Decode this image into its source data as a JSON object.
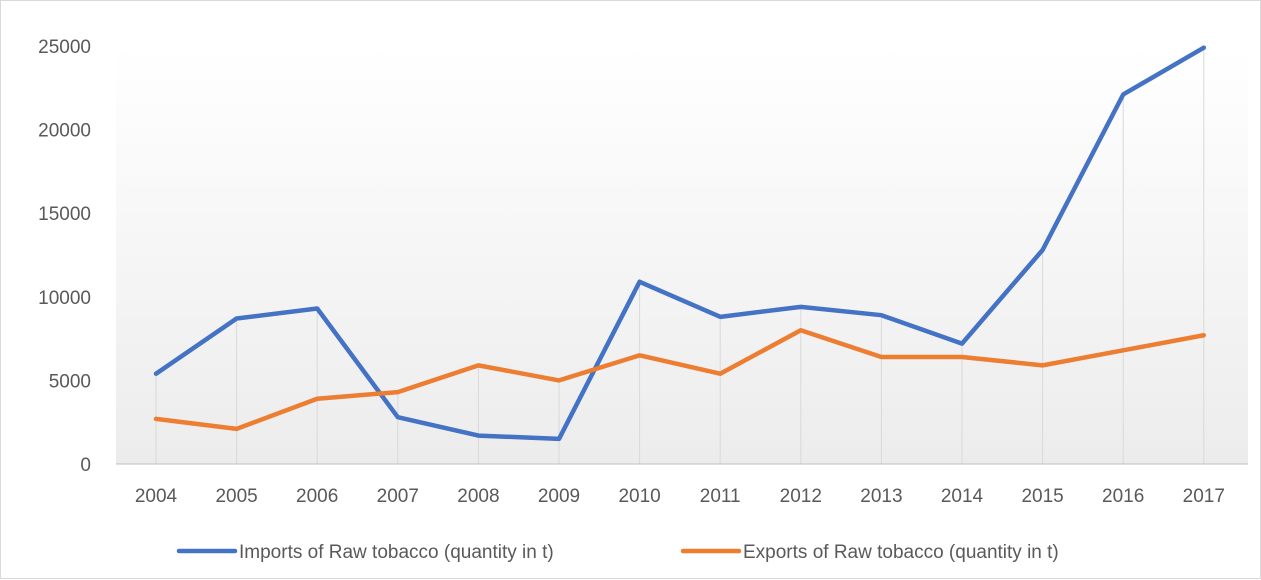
{
  "chart_data": {
    "type": "line",
    "title": "",
    "xlabel": "",
    "ylabel": "",
    "categories": [
      "2004",
      "2005",
      "2006",
      "2007",
      "2008",
      "2009",
      "2010",
      "2011",
      "2012",
      "2013",
      "2014",
      "2015",
      "2016",
      "2017"
    ],
    "ylim": [
      0,
      25000
    ],
    "yticks": [
      "0",
      "5000",
      "10000",
      "15000",
      "20000",
      "25000"
    ],
    "series": [
      {
        "name": "Imports of Raw tobacco (quantity in t)",
        "color": "#4472c4",
        "values": [
          5400,
          8700,
          9300,
          2800,
          1700,
          1500,
          10900,
          8800,
          9400,
          8900,
          7200,
          12800,
          22100,
          24900
        ]
      },
      {
        "name": "Exports of Raw tobacco (quantity in t)",
        "color": "#ed7d31",
        "values": [
          2700,
          2100,
          3900,
          4300,
          5900,
          5000,
          6500,
          5400,
          8000,
          6400,
          6400,
          5900,
          6800,
          7700
        ]
      }
    ],
    "grid": "vertical drop lines",
    "legend_position": "bottom"
  }
}
